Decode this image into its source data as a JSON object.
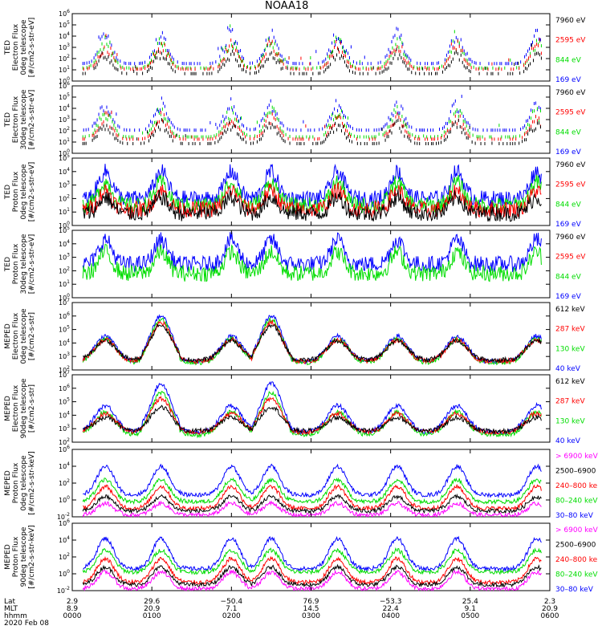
{
  "chart_data": {
    "type": "line",
    "title": "NOAA18",
    "date_label": "2020 Feb 08",
    "footer": {
      "row_labels": [
        "Lat",
        "MLT",
        "hhmm"
      ],
      "ticks": [
        {
          "lat": "2.9",
          "mlt": "8.9",
          "hhmm": "0000"
        },
        {
          "lat": "29.6",
          "mlt": "20.9",
          "hhmm": "0100"
        },
        {
          "lat": "−50.4",
          "mlt": "7.1",
          "hhmm": "0200"
        },
        {
          "lat": "76.9",
          "mlt": "14.5",
          "hhmm": "0300"
        },
        {
          "lat": "−53.3",
          "mlt": "22.4",
          "hhmm": "0400"
        },
        {
          "lat": "25.4",
          "mlt": "9.1",
          "hhmm": "0500"
        },
        {
          "lat": "2.3",
          "mlt": "20.9",
          "hhmm": "0600"
        }
      ]
    },
    "panels": [
      {
        "ylabel": [
          "TED",
          "Electron Flux",
          "0deg telescope",
          "[#/cm2-s-str-eV]"
        ],
        "yticks": [
          "10^0",
          "10^1",
          "10^2",
          "10^3",
          "10^4",
          "10^5",
          "10^6"
        ],
        "ylim": [
          0,
          6
        ],
        "legend": [
          {
            "label": "7960 eV",
            "color": "#000000"
          },
          {
            "label": "2595 eV",
            "color": "#ff0000"
          },
          {
            "label": "844 eV",
            "color": "#00dd00"
          },
          {
            "label": "169 eV",
            "color": "#0000ff"
          }
        ],
        "series": [
          {
            "name": "169 eV",
            "color": "#0000ff",
            "style": "spiky",
            "base": 1.7,
            "peak": 4.6
          },
          {
            "name": "844 eV",
            "color": "#00dd00",
            "style": "spiky",
            "base": 1.3,
            "peak": 4.0
          },
          {
            "name": "2595 eV",
            "color": "#ff0000",
            "style": "spiky",
            "base": 1.2,
            "peak": 3.6
          },
          {
            "name": "7960 eV",
            "color": "#000000",
            "style": "spiky",
            "base": 0.8,
            "peak": 2.8
          }
        ]
      },
      {
        "ylabel": [
          "TED",
          "Electron Flux",
          "30deg telescope",
          "[#/cm2-s-str-eV]"
        ],
        "yticks": [
          "10^0",
          "10^1",
          "10^2",
          "10^3",
          "10^4",
          "10^5",
          "10^6"
        ],
        "ylim": [
          0,
          6
        ],
        "legend": [
          {
            "label": "7960 eV",
            "color": "#000000"
          },
          {
            "label": "2595 eV",
            "color": "#ff0000"
          },
          {
            "label": "844 eV",
            "color": "#00dd00"
          },
          {
            "label": "169 eV",
            "color": "#0000ff"
          }
        ],
        "series": [
          {
            "name": "169 eV",
            "color": "#0000ff",
            "style": "spiky",
            "base": 2.2,
            "peak": 4.8
          },
          {
            "name": "844 eV",
            "color": "#00dd00",
            "style": "spiky",
            "base": 1.6,
            "peak": 4.2
          },
          {
            "name": "2595 eV",
            "color": "#ff0000",
            "style": "spiky",
            "base": 1.4,
            "peak": 3.6
          },
          {
            "name": "7960 eV",
            "color": "#000000",
            "style": "spiky",
            "base": 1.0,
            "peak": 3.0
          }
        ]
      },
      {
        "ylabel": [
          "TED",
          "Proton Flux",
          "0deg telescope",
          "[#/cm2-s-str-eV]"
        ],
        "yticks": [
          "10^0",
          "10^1",
          "10^2",
          "10^3",
          "10^4",
          "10^5"
        ],
        "ylim": [
          0,
          5
        ],
        "legend": [
          {
            "label": "7960 eV",
            "color": "#000000"
          },
          {
            "label": "2595 eV",
            "color": "#ff0000"
          },
          {
            "label": "844 eV",
            "color": "#00dd00"
          },
          {
            "label": "169 eV",
            "color": "#0000ff"
          }
        ],
        "series": [
          {
            "name": "169 eV",
            "color": "#0000ff",
            "style": "dense",
            "base": 2.0,
            "peak": 4.0
          },
          {
            "name": "844 eV",
            "color": "#00dd00",
            "style": "dense",
            "base": 1.5,
            "peak": 3.2
          },
          {
            "name": "2595 eV",
            "color": "#ff0000",
            "style": "dense",
            "base": 1.2,
            "peak": 2.6
          },
          {
            "name": "7960 eV",
            "color": "#000000",
            "style": "dense",
            "base": 0.9,
            "peak": 2.1
          }
        ]
      },
      {
        "ylabel": [
          "TED",
          "Proton Flux",
          "30deg telescope",
          "[#/cm2-s-str-eV]"
        ],
        "yticks": [
          "10^0",
          "10^1",
          "10^2",
          "10^3",
          "10^4",
          "10^5"
        ],
        "ylim": [
          0,
          5
        ],
        "legend": [
          {
            "label": "7960 eV",
            "color": "#000000"
          },
          {
            "label": "2595 eV",
            "color": "#ff0000"
          },
          {
            "label": "844 eV",
            "color": "#00dd00"
          },
          {
            "label": "169 eV",
            "color": "#0000ff"
          }
        ],
        "series": [
          {
            "name": "169 eV",
            "color": "#0000ff",
            "style": "dense",
            "base": 2.5,
            "peak": 4.3
          },
          {
            "name": "844 eV",
            "color": "#00dd00",
            "style": "dense",
            "base": 1.8,
            "peak": 3.4
          }
        ]
      },
      {
        "ylabel": [
          "MEPED",
          "Electron Flux",
          "0deg telescope",
          "[#/cm2-s-str]"
        ],
        "yticks": [
          "10^2",
          "10^3",
          "10^4",
          "10^5",
          "10^6",
          "10^7"
        ],
        "ylim": [
          2,
          7
        ],
        "legend": [
          {
            "label": "612 keV",
            "color": "#000000"
          },
          {
            "label": "287 keV",
            "color": "#ff0000"
          },
          {
            "label": "130 keV",
            "color": "#00dd00"
          },
          {
            "label": "40 keV",
            "color": "#0000ff"
          }
        ],
        "series": [
          {
            "name": "40 keV",
            "color": "#0000ff",
            "style": "arc",
            "base": 2.6,
            "peak": 6.0
          },
          {
            "name": "130 keV",
            "color": "#00dd00",
            "style": "arc",
            "base": 2.5,
            "peak": 5.7
          },
          {
            "name": "287 keV",
            "color": "#ff0000",
            "style": "arc",
            "base": 2.6,
            "peak": 5.5
          },
          {
            "name": "612 keV",
            "color": "#000000",
            "style": "arc",
            "base": 2.7,
            "peak": 5.3
          }
        ]
      },
      {
        "ylabel": [
          "MEPED",
          "Electron Flux",
          "90deg telescope",
          "[#/cm2-s-str]"
        ],
        "yticks": [
          "10^2",
          "10^3",
          "10^4",
          "10^5",
          "10^6",
          "10^7"
        ],
        "ylim": [
          2,
          7
        ],
        "legend": [
          {
            "label": "612 keV",
            "color": "#000000"
          },
          {
            "label": "287 keV",
            "color": "#ff0000"
          },
          {
            "label": "130 keV",
            "color": "#00dd00"
          },
          {
            "label": "40 keV",
            "color": "#0000ff"
          }
        ],
        "series": [
          {
            "name": "40 keV",
            "color": "#0000ff",
            "style": "arc",
            "base": 2.7,
            "peak": 6.3
          },
          {
            "name": "130 keV",
            "color": "#00dd00",
            "style": "arc",
            "base": 2.5,
            "peak": 5.6
          },
          {
            "name": "287 keV",
            "color": "#ff0000",
            "style": "arc",
            "base": 2.7,
            "peak": 5.2
          },
          {
            "name": "612 keV",
            "color": "#000000",
            "style": "arc",
            "base": 2.8,
            "peak": 4.6
          }
        ]
      },
      {
        "ylabel": [
          "MEPED",
          "Proton Flux",
          "0deg telescope",
          "[#/cm2-s-str-keV]"
        ],
        "yticks": [
          "10^-2",
          "10^0",
          "10^2",
          "10^4",
          "10^6"
        ],
        "ylim": [
          -2,
          6
        ],
        "legend": [
          {
            "label": "> 6900 keV",
            "color": "#ff00ff"
          },
          {
            "label": "2500–6900",
            "color": "#000000"
          },
          {
            "label": "240–800 ke",
            "color": "#ff0000"
          },
          {
            "label": "80–240 keV",
            "color": "#00dd00"
          },
          {
            "label": "30–80 keV",
            "color": "#0000ff"
          }
        ],
        "series": [
          {
            "name": "30-80 keV",
            "color": "#0000ff",
            "style": "proton",
            "base": 0.6,
            "peak": 4.0
          },
          {
            "name": "80-240 keV",
            "color": "#00dd00",
            "style": "proton",
            "base": -0.2,
            "peak": 2.4
          },
          {
            "name": "240-800 keV",
            "color": "#ff0000",
            "style": "proton",
            "base": -1.0,
            "peak": 1.6
          },
          {
            "name": "2500-6900",
            "color": "#000000",
            "style": "proton",
            "base": -1.3,
            "peak": 0.4
          },
          {
            "name": "> 6900 keV",
            "color": "#ff00ff",
            "style": "proton",
            "base": -1.8,
            "peak": -0.4
          }
        ]
      },
      {
        "ylabel": [
          "MEPED",
          "Proton Flux",
          "90deg telescope",
          "[#/cm2-s-str-keV]"
        ],
        "yticks": [
          "10^-2",
          "10^0",
          "10^2",
          "10^4",
          "10^6"
        ],
        "ylim": [
          -2,
          6
        ],
        "legend": [
          {
            "label": "> 6900 keV",
            "color": "#ff00ff"
          },
          {
            "label": "2500–6900",
            "color": "#000000"
          },
          {
            "label": "240–800 ke",
            "color": "#ff0000"
          },
          {
            "label": "80–240 keV",
            "color": "#00dd00"
          },
          {
            "label": "30–80 keV",
            "color": "#0000ff"
          }
        ],
        "series": [
          {
            "name": "30-80 keV",
            "color": "#0000ff",
            "style": "proton",
            "base": 0.6,
            "peak": 4.2
          },
          {
            "name": "80-240 keV",
            "color": "#00dd00",
            "style": "proton",
            "base": 0.2,
            "peak": 2.8
          },
          {
            "name": "240-800 keV",
            "color": "#ff0000",
            "style": "proton",
            "base": -1.0,
            "peak": 1.8
          },
          {
            "name": "2500-6900",
            "color": "#000000",
            "style": "proton",
            "base": -1.3,
            "peak": 0.8
          },
          {
            "name": "> 6900 keV",
            "color": "#ff00ff",
            "style": "proton",
            "base": -1.8,
            "peak": 0.2
          }
        ]
      }
    ],
    "pass_centers_hhmm": [
      25,
      67,
      120,
      150,
      200,
      245,
      290,
      350,
      395,
      430,
      480,
      510,
      545
    ]
  }
}
